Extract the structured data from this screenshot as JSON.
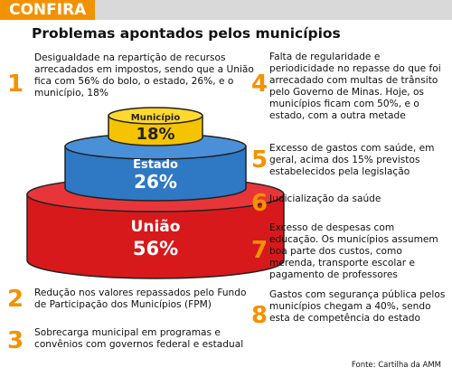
{
  "header": {
    "tag": "CONFIRA",
    "title": "Problemas apontados pelos municípios"
  },
  "items": [
    {
      "number": 1,
      "text": "Desigualdade na repartição de recursos arrecadados em impostos, sendo que a União fica com 56% do bolo, o estado, 26%, e o município, 18%"
    },
    {
      "number": 2,
      "text": "Redução nos valores repassados pelo Fundo de Participação dos Municípios (FPM)"
    },
    {
      "number": 3,
      "text": "Sobrecarga municipal em programas e convênios com governos federal e estadual"
    },
    {
      "number": 4,
      "text": "Falta de regularidade e periodicidade no repasse do que foi arrecadado com multas de trânsito pelo Governo de Minas. Hoje, os municípios ficam com 50%, e o estado, com a outra metade"
    },
    {
      "number": 5,
      "text": "Excesso de gastos com saúde, em geral, acima dos 15% previstos estabelecidos pela legislação"
    },
    {
      "number": 6,
      "text": "Judicialização da saúde"
    },
    {
      "number": 7,
      "text": "Excesso de despesas com educação. Os municípios assumem boa parte dos custos, como merenda, transporte escolar e pagamento de professores"
    },
    {
      "number": 8,
      "text": "Gastos com segurança pública pelos municípios chegam a 40%, sendo esta de competência do estado"
    }
  ],
  "tiers": [
    {
      "label": "Município",
      "value": "18%"
    },
    {
      "label": "Estado",
      "value": "26%"
    },
    {
      "label": "União",
      "value": "56%"
    }
  ],
  "source": "Fonte: Cartilha da AMM"
}
